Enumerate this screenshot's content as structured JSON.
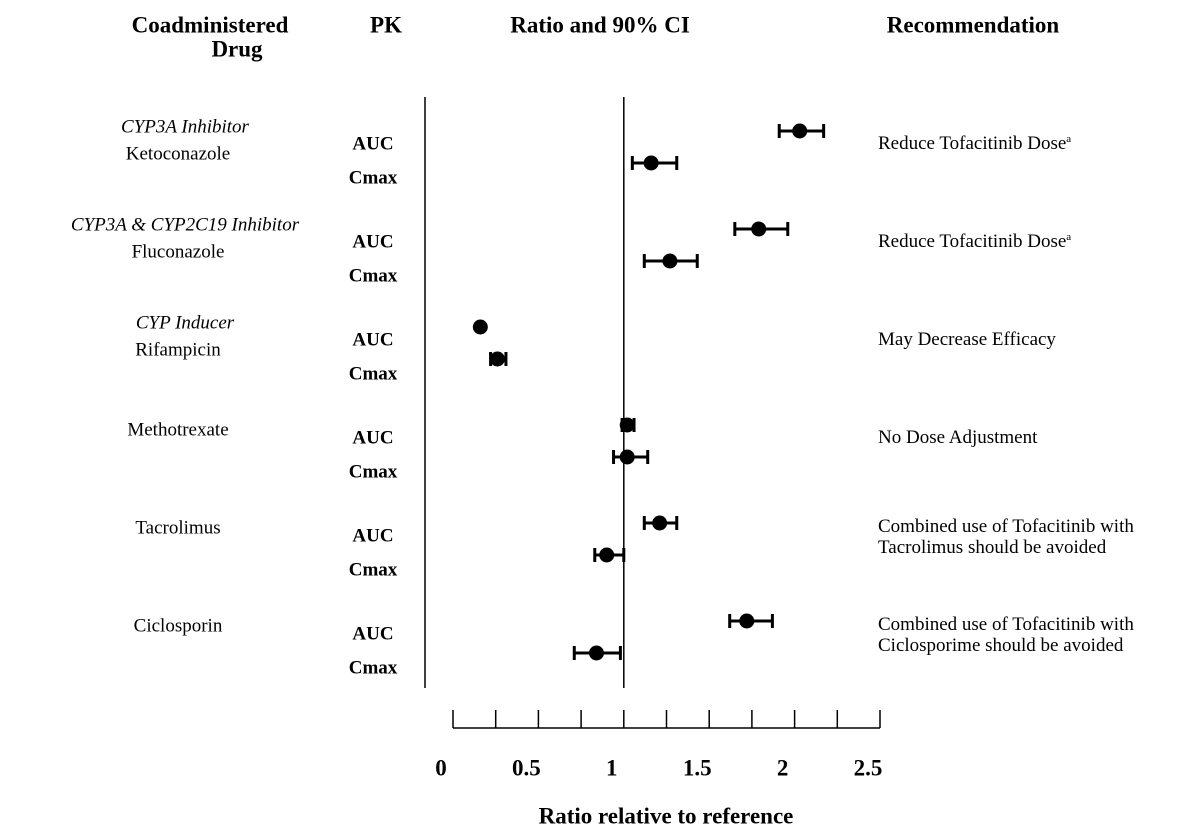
{
  "chart_data": {
    "type": "forest",
    "headers": {
      "drug": [
        "Coadministered",
        "Drug"
      ],
      "pk": "PK",
      "ratio": "Ratio and 90% CI",
      "recommendation": "Recommendation"
    },
    "x_label": "Ratio relative to reference",
    "xlim": [
      0,
      2.5
    ],
    "xticks": [
      0,
      0.5,
      1,
      1.5,
      2,
      2.5
    ],
    "minor_xticks": [
      0.25,
      0.75,
      1.25,
      1.75,
      2.25
    ],
    "reference_line": 1,
    "color": "#000000",
    "rows": [
      {
        "class": "CYP3A Inhibitor",
        "drug": "Ketoconazole",
        "recommendation": [
          "Reduce Tofacitinib Dose"
        ],
        "footnote": "a",
        "pk": [
          {
            "name": "AUC",
            "value": 2.03,
            "ci": [
              1.91,
              2.17
            ]
          },
          {
            "name": "Cmax",
            "value": 1.16,
            "ci": [
              1.05,
              1.31
            ]
          }
        ]
      },
      {
        "class": "CYP3A & CYP2C19 Inhibitor",
        "drug": "Fluconazole",
        "recommendation": [
          "Reduce Tofacitinib Dose"
        ],
        "footnote": "a",
        "pk": [
          {
            "name": "AUC",
            "value": 1.79,
            "ci": [
              1.65,
              1.96
            ]
          },
          {
            "name": "Cmax",
            "value": 1.27,
            "ci": [
              1.12,
              1.43
            ]
          }
        ]
      },
      {
        "class": "CYP Inducer",
        "drug": "Rifampicin",
        "recommendation": [
          "May Decrease Efficacy"
        ],
        "pk": [
          {
            "name": "AUC",
            "value": 0.16
          },
          {
            "name": "Cmax",
            "value": 0.26,
            "ci": [
              0.22,
              0.31
            ]
          }
        ]
      },
      {
        "drug": "Methotrexate",
        "recommendation": [
          "No Dose Adjustment"
        ],
        "pk": [
          {
            "name": "AUC",
            "value": 1.02,
            "ci": [
              0.99,
              1.06
            ]
          },
          {
            "name": "Cmax",
            "value": 1.02,
            "ci": [
              0.94,
              1.14
            ]
          }
        ]
      },
      {
        "drug": "Tacrolimus",
        "recommendation": [
          "Combined use of Tofacitinib  with",
          "Tacrolimus should be avoided"
        ],
        "pk": [
          {
            "name": "AUC",
            "value": 1.21,
            "ci": [
              1.12,
              1.31
            ]
          },
          {
            "name": "Cmax",
            "value": 0.9,
            "ci": [
              0.83,
              1.0
            ]
          }
        ]
      },
      {
        "drug": "Ciclosporin",
        "recommendation": [
          "Combined use of Tofacitinib  with",
          "Ciclosporime should be avoided"
        ],
        "pk": [
          {
            "name": "AUC",
            "value": 1.72,
            "ci": [
              1.62,
              1.87
            ]
          },
          {
            "name": "Cmax",
            "value": 0.84,
            "ci": [
              0.71,
              0.98
            ]
          }
        ]
      }
    ]
  }
}
